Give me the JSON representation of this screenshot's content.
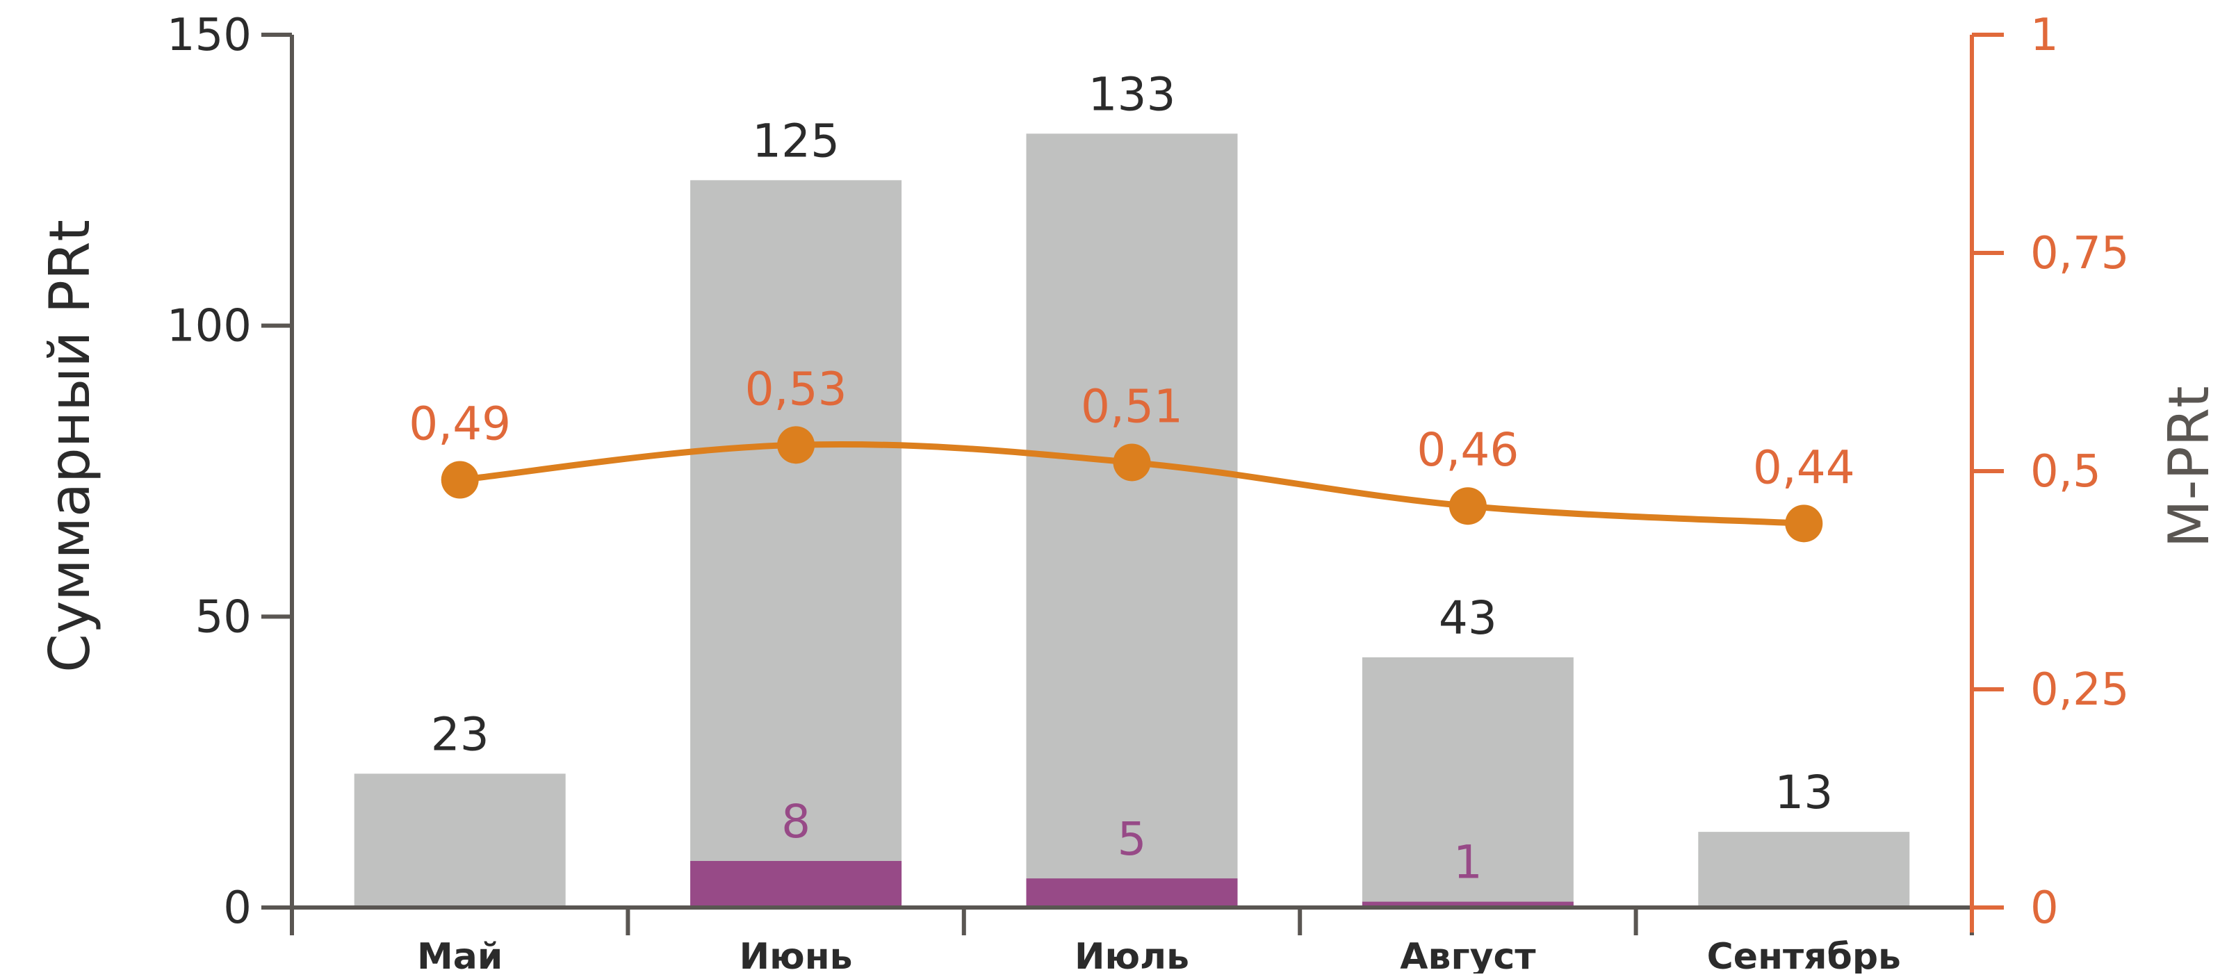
{
  "chart_data": {
    "type": "bar",
    "categories": [
      "Май",
      "Июнь",
      "Июль",
      "Август",
      "Сентябрь"
    ],
    "series": [
      {
        "values": [
          23,
          125,
          133,
          43,
          13
        ],
        "type": "bar",
        "axis": "left",
        "color": "#c0c1c0"
      },
      {
        "values": [
          null,
          8,
          5,
          1,
          null
        ],
        "type": "bar",
        "axis": "left",
        "color": "#974a87"
      },
      {
        "values": [
          0.49,
          0.53,
          0.51,
          0.46,
          0.44
        ],
        "type": "line",
        "axis": "right",
        "color": "#dc7f1e"
      }
    ],
    "bar_labels": [
      "23",
      "125",
      "133",
      "43",
      "13"
    ],
    "sub_labels": [
      "",
      "8",
      "5",
      "1",
      ""
    ],
    "line_labels": [
      "0,49",
      "0,53",
      "0,51",
      "0,46",
      "0,44"
    ],
    "ylabel": "Суммарный PRt",
    "ylabel_right": "M-PRt",
    "ylim": [
      0,
      150
    ],
    "ylim_right": [
      0,
      1
    ],
    "yticks": [
      "0",
      "50",
      "100",
      "150"
    ],
    "yticks_right": [
      "0",
      "0,25",
      "0,5",
      "0,75",
      "1"
    ],
    "grid": false,
    "colors": {
      "axis_left": "#5a5652",
      "axis_right": "#e0693a",
      "text_dark": "#2b2b2b",
      "label_orange": "#e0693a",
      "label_purple": "#974a87"
    }
  }
}
